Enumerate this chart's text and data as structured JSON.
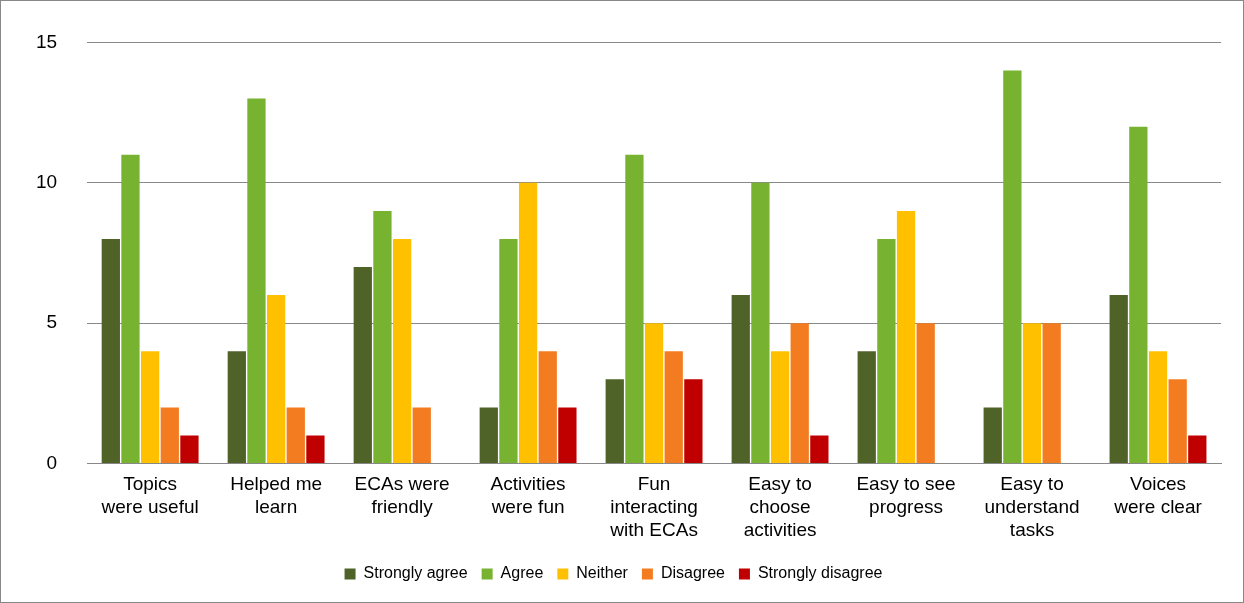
{
  "chart_data": {
    "type": "bar",
    "categories": [
      "Topics\nwere useful",
      "Helped me\nlearn",
      "ECAs were\nfriendly",
      "Activities\nwere fun",
      "Fun\ninteracting\nwith ECAs",
      "Easy to\nchoose\nactivities",
      "Easy to see\nprogress",
      "Easy to\nunderstand\ntasks",
      "Voices\nwere clear"
    ],
    "series": [
      {
        "name": "Strongly agree",
        "color": "#4f6228",
        "values": [
          8,
          4,
          7,
          2,
          3,
          6,
          4,
          2,
          6
        ]
      },
      {
        "name": "Agree",
        "color": "#77b330",
        "values": [
          11,
          13,
          9,
          8,
          11,
          10,
          8,
          14,
          12
        ]
      },
      {
        "name": "Neither",
        "color": "#ffc000",
        "values": [
          4,
          6,
          8,
          10,
          5,
          4,
          9,
          5,
          4
        ]
      },
      {
        "name": "Disagree",
        "color": "#f47c20",
        "values": [
          2,
          2,
          2,
          4,
          4,
          5,
          5,
          5,
          3
        ]
      },
      {
        "name": "Strongly disagree",
        "color": "#c00000",
        "values": [
          1,
          1,
          0,
          2,
          3,
          1,
          0,
          0,
          1
        ]
      }
    ],
    "ylim": [
      0,
      15
    ],
    "yticks": [
      0,
      5,
      10,
      15
    ],
    "grid": "y",
    "legend": "bottom"
  }
}
